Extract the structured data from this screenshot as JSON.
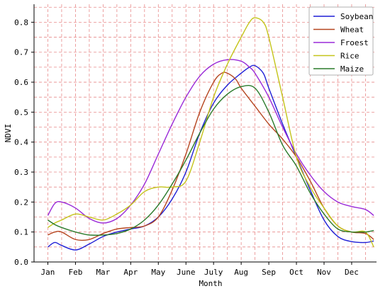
{
  "chart_data": {
    "type": "line",
    "xlabel": "Month",
    "ylabel": "NDVI",
    "ylim": [
      0.0,
      0.86
    ],
    "yticks": [
      0.0,
      0.1,
      0.2,
      0.3,
      0.4,
      0.5,
      0.6,
      0.7,
      0.8
    ],
    "ytick_labels": [
      "0.0",
      "0.1",
      "0.2",
      "0.3",
      "0.4",
      "0.5",
      "0.6",
      "0.7",
      "0.8"
    ],
    "xlim": [
      0.5,
      12.9
    ],
    "x_ticks": [
      1,
      2,
      3,
      4,
      5,
      6,
      7,
      8,
      9,
      10,
      11,
      12
    ],
    "categories": [
      "Jan",
      "Feb",
      "Mar",
      "Apr",
      "May",
      "June",
      "July",
      "Aug",
      "Sep",
      "Oct",
      "Nov",
      "Dec"
    ],
    "grid": true,
    "legend_position": "top-right",
    "series": [
      {
        "name": "Soybean",
        "color": "#1f1fd6",
        "x": [
          1.0,
          1.25,
          1.5,
          2.0,
          2.5,
          3.0,
          3.5,
          4.0,
          4.5,
          5.0,
          5.5,
          6.0,
          6.5,
          7.0,
          7.5,
          8.0,
          8.3,
          8.5,
          8.8,
          9.0,
          9.5,
          10.0,
          10.5,
          11.0,
          11.5,
          12.0,
          12.5,
          12.8
        ],
        "y": [
          0.05,
          0.065,
          0.055,
          0.04,
          0.06,
          0.085,
          0.1,
          0.11,
          0.12,
          0.15,
          0.21,
          0.3,
          0.43,
          0.53,
          0.59,
          0.63,
          0.65,
          0.655,
          0.63,
          0.58,
          0.46,
          0.35,
          0.24,
          0.14,
          0.085,
          0.068,
          0.065,
          0.07
        ]
      },
      {
        "name": "Wheat",
        "color": "#b5451f",
        "x": [
          1.0,
          1.25,
          1.5,
          2.0,
          2.5,
          3.0,
          3.5,
          4.0,
          4.5,
          5.0,
          5.5,
          6.0,
          6.5,
          7.0,
          7.3,
          7.5,
          7.8,
          8.0,
          8.5,
          9.0,
          9.5,
          10.0,
          10.5,
          11.0,
          11.5,
          12.0,
          12.5,
          12.8
        ],
        "y": [
          0.09,
          0.1,
          0.1,
          0.075,
          0.075,
          0.095,
          0.11,
          0.115,
          0.12,
          0.15,
          0.24,
          0.36,
          0.5,
          0.6,
          0.63,
          0.63,
          0.61,
          0.58,
          0.52,
          0.46,
          0.41,
          0.35,
          0.27,
          0.18,
          0.12,
          0.1,
          0.095,
          0.075
        ]
      },
      {
        "name": "Froest",
        "color": "#9a2ad8",
        "x": [
          1.0,
          1.25,
          1.5,
          2.0,
          2.5,
          3.0,
          3.5,
          4.0,
          4.5,
          5.0,
          5.5,
          6.0,
          6.5,
          7.0,
          7.5,
          8.0,
          8.3,
          8.5,
          9.0,
          9.5,
          10.0,
          10.5,
          11.0,
          11.5,
          12.0,
          12.5,
          12.8
        ],
        "y": [
          0.155,
          0.195,
          0.2,
          0.18,
          0.145,
          0.13,
          0.145,
          0.19,
          0.26,
          0.36,
          0.46,
          0.55,
          0.62,
          0.66,
          0.675,
          0.67,
          0.65,
          0.63,
          0.55,
          0.45,
          0.36,
          0.29,
          0.235,
          0.2,
          0.185,
          0.175,
          0.155
        ]
      },
      {
        "name": "Rice",
        "color": "#c4c41a",
        "x": [
          1.0,
          1.25,
          1.5,
          2.0,
          2.5,
          3.0,
          3.5,
          4.0,
          4.5,
          5.0,
          5.5,
          6.0,
          6.5,
          7.0,
          7.5,
          8.0,
          8.3,
          8.5,
          8.8,
          9.0,
          9.5,
          10.0,
          10.5,
          11.0,
          11.5,
          12.0,
          12.5,
          12.8
        ],
        "y": [
          0.115,
          0.13,
          0.14,
          0.16,
          0.15,
          0.14,
          0.16,
          0.19,
          0.235,
          0.25,
          0.25,
          0.27,
          0.4,
          0.55,
          0.66,
          0.75,
          0.8,
          0.815,
          0.8,
          0.75,
          0.55,
          0.35,
          0.25,
          0.18,
          0.12,
          0.1,
          0.1,
          0.05
        ]
      },
      {
        "name": "Maize",
        "color": "#2a7a2a",
        "x": [
          1.0,
          1.25,
          1.5,
          2.0,
          2.5,
          3.0,
          3.5,
          4.0,
          4.5,
          5.0,
          5.5,
          6.0,
          6.5,
          7.0,
          7.5,
          8.0,
          8.5,
          9.0,
          9.5,
          10.0,
          10.5,
          11.0,
          11.5,
          12.0,
          12.3,
          12.5,
          12.8
        ],
        "y": [
          0.14,
          0.125,
          0.115,
          0.1,
          0.09,
          0.09,
          0.095,
          0.11,
          0.14,
          0.19,
          0.26,
          0.34,
          0.43,
          0.51,
          0.56,
          0.585,
          0.58,
          0.5,
          0.39,
          0.32,
          0.23,
          0.16,
          0.11,
          0.1,
          0.1,
          0.1,
          0.105
        ]
      }
    ]
  }
}
